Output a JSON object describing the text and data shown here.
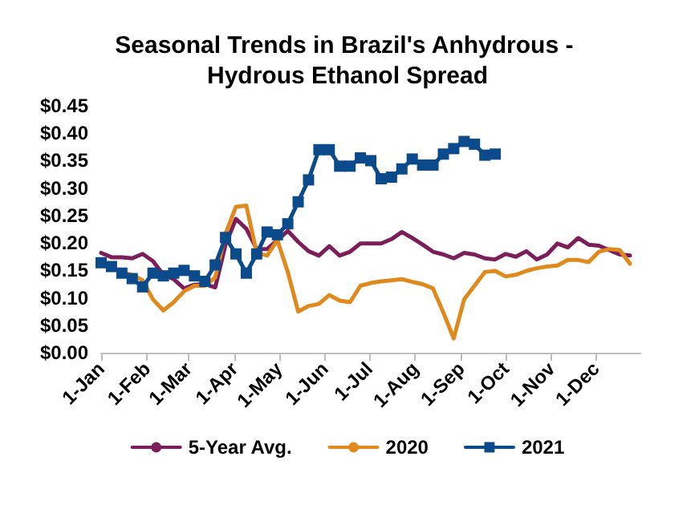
{
  "chart_data": {
    "type": "line",
    "title": "Seasonal Trends in Brazil's Anhydrous - Hydrous Ethanol Spread",
    "x": [
      "--01-01",
      "--01-08",
      "--01-15",
      "--01-22",
      "--01-29",
      "--02-05",
      "--02-12",
      "--02-19",
      "--02-26",
      "--03-05",
      "--03-12",
      "--03-19",
      "--03-26",
      "--04-02",
      "--04-09",
      "--04-16",
      "--04-23",
      "--04-30",
      "--05-07",
      "--05-14",
      "--05-21",
      "--05-28",
      "--06-04",
      "--06-11",
      "--06-18",
      "--06-25",
      "--07-02",
      "--07-09",
      "--07-16",
      "--07-23",
      "--07-30",
      "--08-06",
      "--08-13",
      "--08-20",
      "--08-27",
      "--09-03",
      "--09-10",
      "--09-17",
      "--09-24",
      "--10-01",
      "--10-08",
      "--10-15",
      "--10-22",
      "--10-29",
      "--11-05",
      "--11-12",
      "--11-19",
      "--11-26",
      "--12-03",
      "--12-10",
      "--12-17",
      "--12-24"
    ],
    "series": [
      {
        "name": "5-Year Avg.",
        "color": "#7b1e5a",
        "marker": "none",
        "values": [
          0.182,
          0.174,
          0.174,
          0.172,
          0.18,
          0.167,
          0.142,
          0.134,
          0.117,
          0.124,
          0.125,
          0.119,
          0.197,
          0.244,
          0.226,
          0.189,
          0.189,
          0.205,
          0.222,
          0.202,
          0.185,
          0.177,
          0.194,
          0.177,
          0.184,
          0.199,
          0.199,
          0.199,
          0.207,
          0.22,
          0.209,
          0.197,
          0.184,
          0.179,
          0.172,
          0.182,
          0.179,
          0.172,
          0.17,
          0.18,
          0.175,
          0.185,
          0.17,
          0.179,
          0.199,
          0.192,
          0.209,
          0.197,
          0.195,
          0.187,
          0.179,
          0.177
        ]
      },
      {
        "name": "2020",
        "color": "#e08a1e",
        "marker": "none",
        "values": [
          0.167,
          null,
          0.147,
          0.142,
          0.132,
          0.097,
          0.077,
          0.092,
          0.112,
          0.122,
          0.122,
          0.137,
          0.217,
          0.266,
          0.268,
          0.182,
          0.177,
          0.205,
          0.147,
          0.075,
          0.085,
          0.089,
          0.105,
          0.095,
          0.092,
          0.122,
          0.127,
          0.13,
          0.132,
          0.134,
          0.129,
          0.125,
          0.117,
          0.073,
          0.026,
          0.097,
          0.122,
          0.147,
          0.149,
          0.139,
          0.142,
          0.149,
          0.154,
          0.157,
          0.159,
          0.169,
          0.169,
          0.165,
          0.184,
          0.189,
          0.187,
          0.162
        ]
      },
      {
        "name": "2021",
        "color": "#0b4a8b",
        "marker": "square",
        "values": [
          0.164,
          0.157,
          0.145,
          0.135,
          0.12,
          0.145,
          0.14,
          0.145,
          0.15,
          0.14,
          0.13,
          0.16,
          0.21,
          0.18,
          0.145,
          0.18,
          0.22,
          0.215,
          0.235,
          0.275,
          0.315,
          0.37,
          0.37,
          0.34,
          0.34,
          0.355,
          0.35,
          0.317,
          0.32,
          0.335,
          0.353,
          0.342,
          0.342,
          0.362,
          0.372,
          0.385,
          0.38,
          0.36,
          0.362,
          null,
          null,
          null,
          null,
          null,
          null,
          null,
          null,
          null,
          null,
          null,
          null,
          null
        ]
      }
    ],
    "xlim": [
      "--01-01",
      "--12-31"
    ],
    "xticks": [
      {
        "value": "--01-01",
        "label": "1-Jan"
      },
      {
        "value": "--02-01",
        "label": "1-Feb"
      },
      {
        "value": "--03-01",
        "label": "1-Mar"
      },
      {
        "value": "--04-01",
        "label": "1-Apr"
      },
      {
        "value": "--05-01",
        "label": "1-May"
      },
      {
        "value": "--06-01",
        "label": "1-Jun"
      },
      {
        "value": "--07-01",
        "label": "1-Jul"
      },
      {
        "value": "--08-01",
        "label": "1-Aug"
      },
      {
        "value": "--09-01",
        "label": "1-Sep"
      },
      {
        "value": "--10-01",
        "label": "1-Oct"
      },
      {
        "value": "--11-01",
        "label": "1-Nov"
      },
      {
        "value": "--12-01",
        "label": "1-Dec"
      }
    ],
    "ylim": [
      0,
      0.45
    ],
    "yticks": [
      {
        "value": 0,
        "label": "$0.00"
      },
      {
        "value": 0.05,
        "label": "$0.05"
      },
      {
        "value": 0.1,
        "label": "$0.10"
      },
      {
        "value": 0.15,
        "label": "$0.15"
      },
      {
        "value": 0.2,
        "label": "$0.20"
      },
      {
        "value": 0.25,
        "label": "$0.25"
      },
      {
        "value": 0.3,
        "label": "$0.30"
      },
      {
        "value": 0.35,
        "label": "$0.35"
      },
      {
        "value": 0.4,
        "label": "$0.40"
      },
      {
        "value": 0.45,
        "label": "$0.45"
      }
    ],
    "grid": false,
    "legend": "bottom",
    "line_style": "solid"
  }
}
